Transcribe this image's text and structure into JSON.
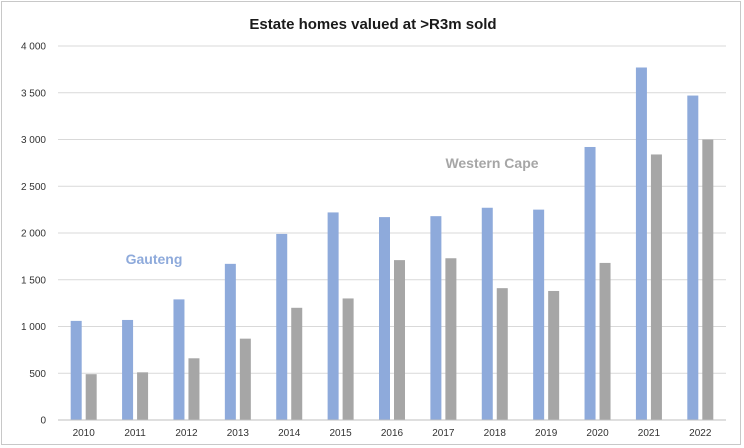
{
  "chart_data": {
    "type": "bar",
    "title": "Estate homes valued at >R3m sold",
    "xlabel": "",
    "ylabel": "",
    "ylim": [
      0,
      4000
    ],
    "y_ticks": [
      "0",
      "500",
      "1 000",
      "1 500",
      "2 000",
      "2 500",
      "3 000",
      "3 500",
      "4 000"
    ],
    "y_tick_values": [
      0,
      500,
      1000,
      1500,
      2000,
      2500,
      3000,
      3500,
      4000
    ],
    "grid": true,
    "legend": "inline labels",
    "categories": [
      "2010",
      "2011",
      "2012",
      "2013",
      "2014",
      "2015",
      "2016",
      "2017",
      "2018",
      "2019",
      "2020",
      "2021",
      "2022"
    ],
    "series": [
      {
        "name": "Gauteng",
        "color": "#8eaadb",
        "values": [
          1060,
          1070,
          1290,
          1670,
          1990,
          2220,
          2170,
          2180,
          2270,
          2250,
          2920,
          3770,
          3470
        ]
      },
      {
        "name": "Western Cape",
        "color": "#a6a6a6",
        "values": [
          490,
          510,
          660,
          870,
          1200,
          1300,
          1710,
          1730,
          1410,
          1380,
          1680,
          2840,
          3000
        ]
      }
    ]
  }
}
